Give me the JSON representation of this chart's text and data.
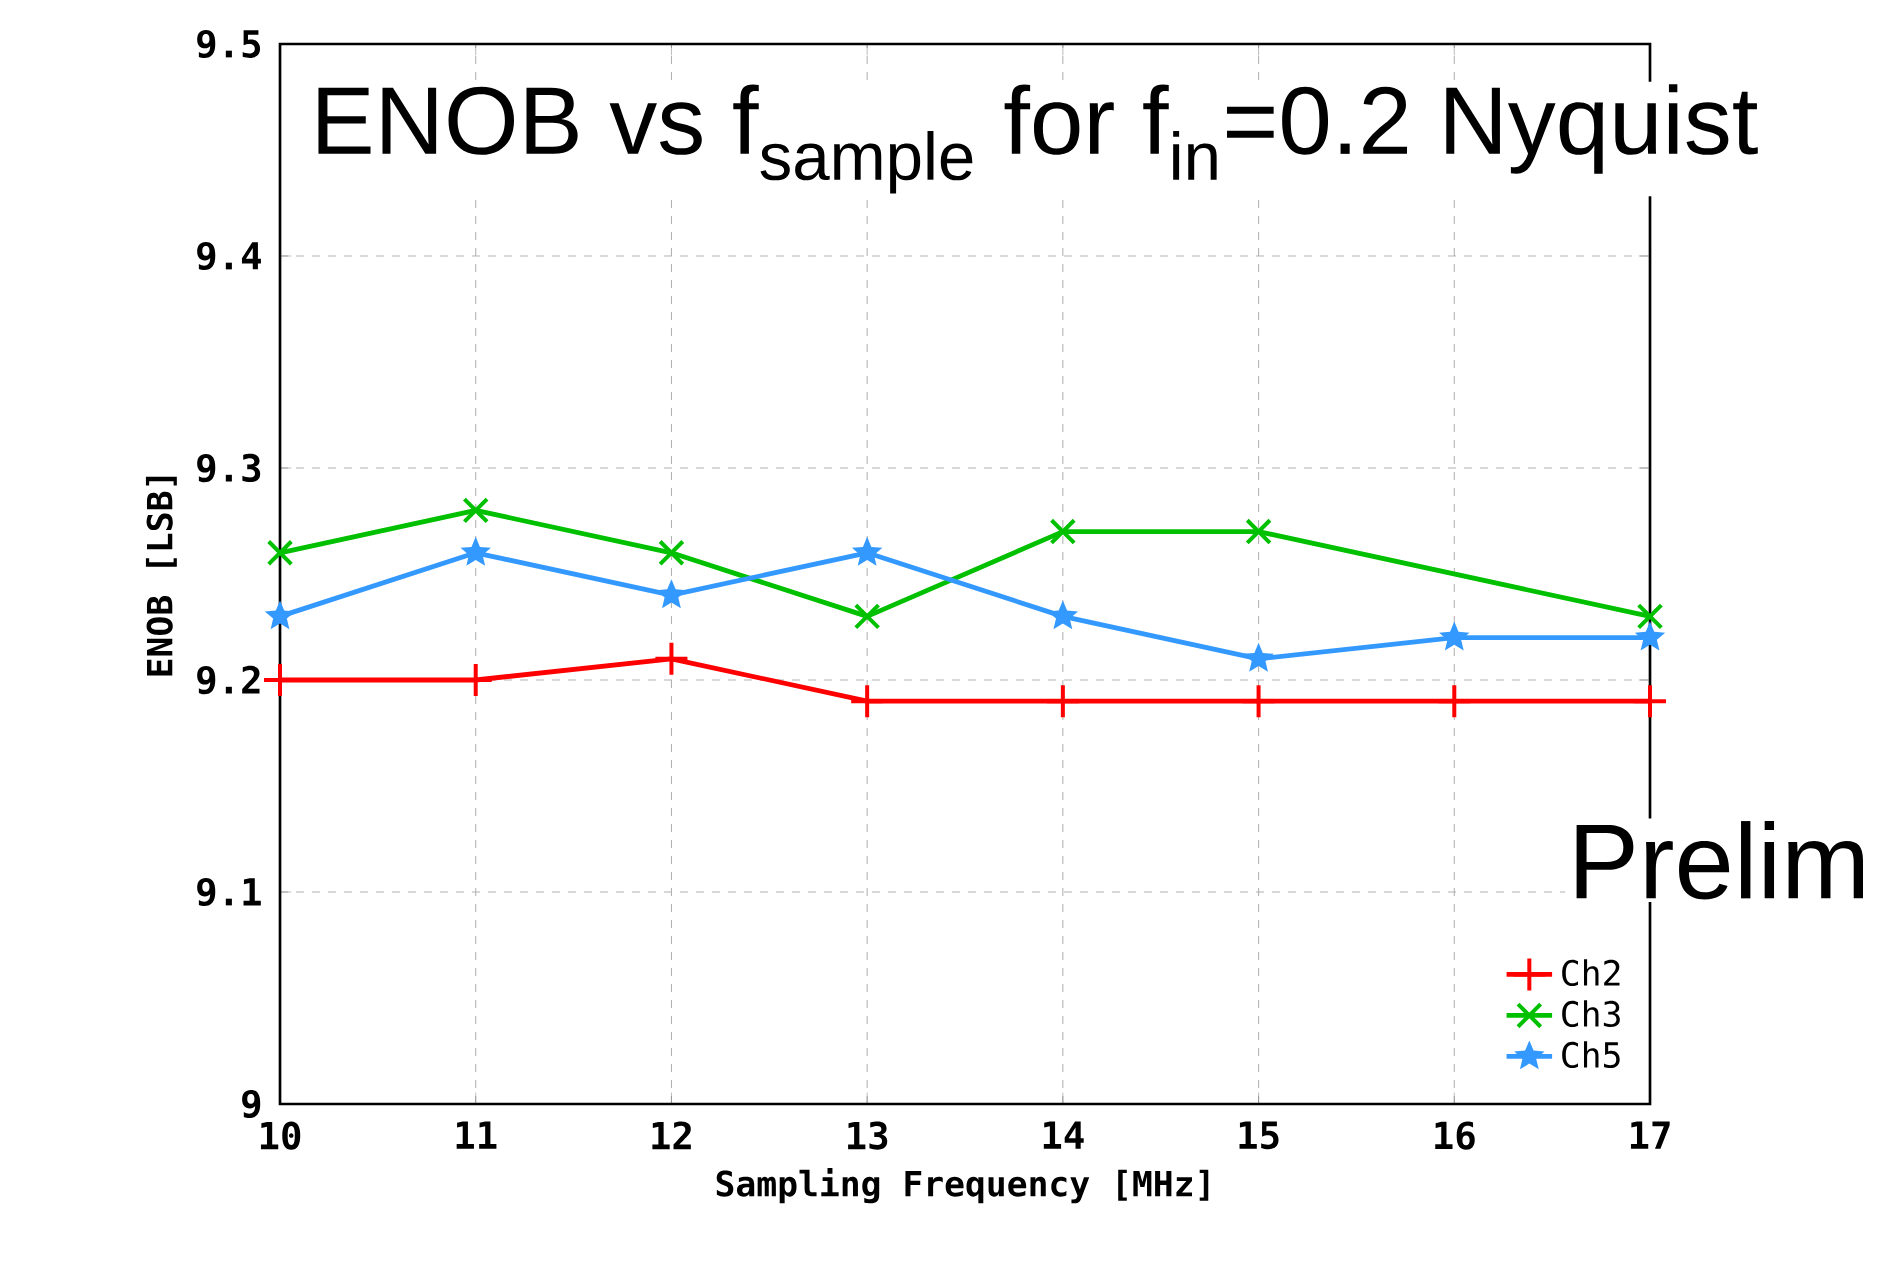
{
  "chart_data": {
    "type": "line",
    "title": "ENOB vs f$_{sample}$ for f$_{in}$=0.2 Nyquist",
    "xlabel": "Sampling Frequency [MHz]",
    "ylabel": "ENOB [LSB]",
    "xlim": [
      10,
      17
    ],
    "xticks": [
      10,
      11,
      12,
      13,
      14,
      15,
      16,
      17
    ],
    "ylim": [
      9,
      9.5
    ],
    "yticks": [
      9,
      9.1,
      9.2,
      9.3,
      9.4,
      9.5
    ],
    "grid": true,
    "legend": "bottom right",
    "annotations": [
      "Prelim"
    ],
    "series": [
      {
        "name": "Ch2",
        "color": "#ff0000",
        "marker": "plus",
        "x": [
          10,
          11,
          12,
          13,
          14,
          15,
          16,
          17
        ],
        "values": [
          9.2,
          9.2,
          9.21,
          9.19,
          9.19,
          9.19,
          9.19,
          9.19
        ]
      },
      {
        "name": "Ch3",
        "color": "#00c000",
        "marker": "cross",
        "x": [
          10,
          11,
          12,
          13,
          14,
          15,
          17
        ],
        "values": [
          9.26,
          9.28,
          9.26,
          9.23,
          9.27,
          9.27,
          9.23
        ]
      },
      {
        "name": "Ch5",
        "color": "#3399ff",
        "marker": "star",
        "x": [
          10,
          11,
          12,
          13,
          14,
          15,
          16,
          17
        ],
        "values": [
          9.23,
          9.26,
          9.24,
          9.26,
          9.23,
          9.21,
          9.22,
          9.22
        ]
      }
    ]
  }
}
